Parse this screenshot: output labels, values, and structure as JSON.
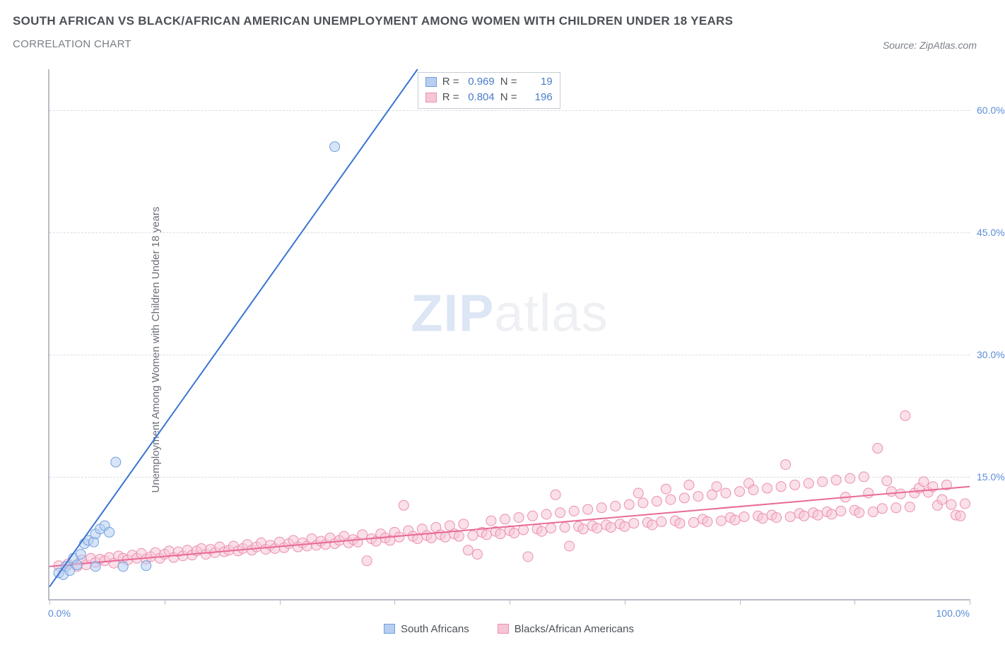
{
  "header": {
    "title": "SOUTH AFRICAN VS BLACK/AFRICAN AMERICAN UNEMPLOYMENT AMONG WOMEN WITH CHILDREN UNDER 18 YEARS",
    "subtitle": "CORRELATION CHART",
    "source_label": "Source:",
    "source_value": "ZipAtlas.com"
  },
  "watermark": {
    "part1": "ZIP",
    "part2": "atlas"
  },
  "chart": {
    "type": "scatter",
    "y_axis_label": "Unemployment Among Women with Children Under 18 years",
    "background_color": "#ffffff",
    "axis_color": "#b8bdc6",
    "grid_color": "#dadde3",
    "xlim": [
      0,
      100
    ],
    "ylim": [
      0,
      65
    ],
    "x_ticks": [
      0,
      12.5,
      25,
      37.5,
      50,
      62.5,
      75,
      87.5,
      100
    ],
    "x_tick_labels_shown": {
      "0": "0.0%",
      "100": "100.0%"
    },
    "y_gridlines": [
      15,
      30,
      45,
      60
    ],
    "y_tick_labels": [
      "15.0%",
      "30.0%",
      "45.0%",
      "60.0%"
    ],
    "tick_label_color": "#5b8dd6",
    "label_fontsize": 15,
    "tick_fontsize": 14,
    "marker_radius": 7,
    "marker_opacity": 0.55,
    "line_width": 2,
    "series": [
      {
        "name": "South Africans",
        "color_fill": "#b8cef0",
        "color_stroke": "#6f9fe0",
        "line_color": "#3b74d1",
        "R": "0.969",
        "N": "19",
        "regression": {
          "x1": 0,
          "y1": 1.5,
          "x2": 40,
          "y2": 65
        },
        "points": [
          [
            1.0,
            3.2
          ],
          [
            1.5,
            3.0
          ],
          [
            1.8,
            4.0
          ],
          [
            2.2,
            3.5
          ],
          [
            2.6,
            5.0
          ],
          [
            3.0,
            4.2
          ],
          [
            3.4,
            5.5
          ],
          [
            3.8,
            6.8
          ],
          [
            4.2,
            7.2
          ],
          [
            4.8,
            7.0
          ],
          [
            5.0,
            8.0
          ],
          [
            5.5,
            8.6
          ],
          [
            6.0,
            9.0
          ],
          [
            6.5,
            8.2
          ],
          [
            5.0,
            4.0
          ],
          [
            8.0,
            4.0
          ],
          [
            10.5,
            4.1
          ],
          [
            7.2,
            16.8
          ],
          [
            31.0,
            55.5
          ]
        ]
      },
      {
        "name": "Blacks/African Americans",
        "color_fill": "#f6c6d6",
        "color_stroke": "#ec8fb0",
        "line_color": "#e86a98",
        "R": "0.804",
        "N": "196",
        "regression": {
          "x1": 0,
          "y1": 4.0,
          "x2": 100,
          "y2": 13.8
        },
        "points": [
          [
            1,
            4.1
          ],
          [
            2,
            4.3
          ],
          [
            3,
            4.0
          ],
          [
            3.5,
            4.8
          ],
          [
            4,
            4.2
          ],
          [
            4.5,
            5.0
          ],
          [
            5,
            4.5
          ],
          [
            5.5,
            4.9
          ],
          [
            6,
            4.7
          ],
          [
            6.5,
            5.1
          ],
          [
            7,
            4.4
          ],
          [
            7.5,
            5.3
          ],
          [
            8,
            5.0
          ],
          [
            8.5,
            4.8
          ],
          [
            9,
            5.4
          ],
          [
            9.5,
            5.0
          ],
          [
            10,
            5.6
          ],
          [
            10.5,
            4.9
          ],
          [
            11,
            5.2
          ],
          [
            11.5,
            5.7
          ],
          [
            12,
            5.0
          ],
          [
            12.5,
            5.5
          ],
          [
            13,
            5.9
          ],
          [
            13.5,
            5.1
          ],
          [
            14,
            5.8
          ],
          [
            14.5,
            5.3
          ],
          [
            15,
            6.0
          ],
          [
            15.5,
            5.4
          ],
          [
            16,
            5.9
          ],
          [
            16.5,
            6.2
          ],
          [
            17,
            5.5
          ],
          [
            17.5,
            6.1
          ],
          [
            18,
            5.7
          ],
          [
            18.5,
            6.4
          ],
          [
            19,
            5.8
          ],
          [
            19.5,
            6.0
          ],
          [
            20,
            6.5
          ],
          [
            20.5,
            5.9
          ],
          [
            21,
            6.2
          ],
          [
            21.5,
            6.7
          ],
          [
            22,
            6.0
          ],
          [
            22.5,
            6.4
          ],
          [
            23,
            6.9
          ],
          [
            23.5,
            6.1
          ],
          [
            24,
            6.6
          ],
          [
            24.5,
            6.2
          ],
          [
            25,
            7.0
          ],
          [
            25.5,
            6.3
          ],
          [
            26,
            6.8
          ],
          [
            26.5,
            7.2
          ],
          [
            27,
            6.4
          ],
          [
            27.5,
            6.9
          ],
          [
            28,
            6.5
          ],
          [
            28.5,
            7.4
          ],
          [
            29,
            6.6
          ],
          [
            29.5,
            7.1
          ],
          [
            30,
            6.7
          ],
          [
            30.5,
            7.5
          ],
          [
            31,
            6.8
          ],
          [
            31.5,
            7.2
          ],
          [
            32,
            7.7
          ],
          [
            32.5,
            6.9
          ],
          [
            33,
            7.3
          ],
          [
            33.5,
            7.0
          ],
          [
            34,
            7.9
          ],
          [
            34.5,
            4.7
          ],
          [
            35,
            7.4
          ],
          [
            35.5,
            7.1
          ],
          [
            36,
            8.0
          ],
          [
            36.5,
            7.5
          ],
          [
            37,
            7.2
          ],
          [
            37.5,
            8.2
          ],
          [
            38,
            7.6
          ],
          [
            38.5,
            11.5
          ],
          [
            39,
            8.4
          ],
          [
            39.5,
            7.7
          ],
          [
            40,
            7.4
          ],
          [
            40.5,
            8.6
          ],
          [
            41,
            7.8
          ],
          [
            41.5,
            7.5
          ],
          [
            42,
            8.8
          ],
          [
            42.5,
            7.9
          ],
          [
            43,
            7.6
          ],
          [
            43.5,
            9.0
          ],
          [
            44,
            8.0
          ],
          [
            44.5,
            7.7
          ],
          [
            45,
            9.2
          ],
          [
            45.5,
            6.0
          ],
          [
            46,
            7.8
          ],
          [
            46.5,
            5.5
          ],
          [
            47,
            8.2
          ],
          [
            47.5,
            7.9
          ],
          [
            48,
            9.6
          ],
          [
            48.5,
            8.3
          ],
          [
            49,
            8.0
          ],
          [
            49.5,
            9.8
          ],
          [
            50,
            8.4
          ],
          [
            50.5,
            8.1
          ],
          [
            51,
            10.0
          ],
          [
            51.5,
            8.5
          ],
          [
            52,
            5.2
          ],
          [
            52.5,
            10.2
          ],
          [
            53,
            8.6
          ],
          [
            53.5,
            8.3
          ],
          [
            54,
            10.4
          ],
          [
            54.5,
            8.7
          ],
          [
            55,
            12.8
          ],
          [
            55.5,
            10.6
          ],
          [
            56,
            8.8
          ],
          [
            56.5,
            6.5
          ],
          [
            57,
            10.8
          ],
          [
            57.5,
            8.9
          ],
          [
            58,
            8.6
          ],
          [
            58.5,
            11.0
          ],
          [
            59,
            9.0
          ],
          [
            59.5,
            8.7
          ],
          [
            60,
            11.2
          ],
          [
            60.5,
            9.1
          ],
          [
            61,
            8.8
          ],
          [
            61.5,
            11.4
          ],
          [
            62,
            9.2
          ],
          [
            62.5,
            8.9
          ],
          [
            63,
            11.6
          ],
          [
            63.5,
            9.3
          ],
          [
            64,
            13.0
          ],
          [
            64.5,
            11.8
          ],
          [
            65,
            9.4
          ],
          [
            65.5,
            9.1
          ],
          [
            66,
            12.0
          ],
          [
            66.5,
            9.5
          ],
          [
            67,
            13.5
          ],
          [
            67.5,
            12.2
          ],
          [
            68,
            9.6
          ],
          [
            68.5,
            9.3
          ],
          [
            69,
            12.4
          ],
          [
            69.5,
            14.0
          ],
          [
            70,
            9.4
          ],
          [
            70.5,
            12.6
          ],
          [
            71,
            9.8
          ],
          [
            71.5,
            9.5
          ],
          [
            72,
            12.8
          ],
          [
            72.5,
            13.8
          ],
          [
            73,
            9.6
          ],
          [
            73.5,
            13.0
          ],
          [
            74,
            10.0
          ],
          [
            74.5,
            9.7
          ],
          [
            75,
            13.2
          ],
          [
            75.5,
            10.1
          ],
          [
            76,
            14.2
          ],
          [
            76.5,
            13.4
          ],
          [
            77,
            10.2
          ],
          [
            77.5,
            9.9
          ],
          [
            78,
            13.6
          ],
          [
            78.5,
            10.3
          ],
          [
            79,
            10.0
          ],
          [
            79.5,
            13.8
          ],
          [
            80,
            16.5
          ],
          [
            80.5,
            10.1
          ],
          [
            81,
            14.0
          ],
          [
            81.5,
            10.5
          ],
          [
            82,
            10.2
          ],
          [
            82.5,
            14.2
          ],
          [
            83,
            10.6
          ],
          [
            83.5,
            10.3
          ],
          [
            84,
            14.4
          ],
          [
            84.5,
            10.7
          ],
          [
            85,
            10.4
          ],
          [
            85.5,
            14.6
          ],
          [
            86,
            10.8
          ],
          [
            86.5,
            12.5
          ],
          [
            87,
            14.8
          ],
          [
            87.5,
            10.9
          ],
          [
            88,
            10.6
          ],
          [
            88.5,
            15.0
          ],
          [
            89,
            13.0
          ],
          [
            89.5,
            10.7
          ],
          [
            90,
            18.5
          ],
          [
            90.5,
            11.1
          ],
          [
            91,
            14.5
          ],
          [
            91.5,
            13.2
          ],
          [
            92,
            11.2
          ],
          [
            92.5,
            12.9
          ],
          [
            93,
            22.5
          ],
          [
            93.5,
            11.3
          ],
          [
            94,
            13.0
          ],
          [
            94.5,
            13.6
          ],
          [
            95,
            14.4
          ],
          [
            95.5,
            13.1
          ],
          [
            96,
            13.8
          ],
          [
            96.5,
            11.5
          ],
          [
            97,
            12.2
          ],
          [
            97.5,
            14.0
          ],
          [
            98,
            11.6
          ],
          [
            98.5,
            10.3
          ],
          [
            99,
            10.2
          ],
          [
            99.5,
            11.7
          ]
        ]
      }
    ],
    "legend_top": {
      "R_label": "R =",
      "N_label": "N ="
    },
    "legend_bottom": [
      {
        "label": "South Africans",
        "fill": "#b8cef0",
        "stroke": "#6f9fe0"
      },
      {
        "label": "Blacks/African Americans",
        "fill": "#f6c6d6",
        "stroke": "#ec8fb0"
      }
    ]
  }
}
